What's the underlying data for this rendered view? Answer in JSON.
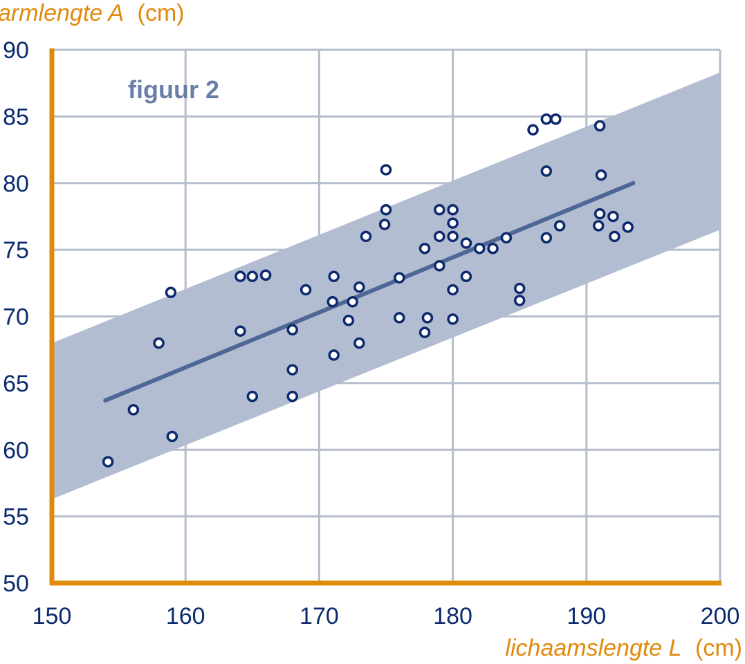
{
  "chart_data": {
    "type": "scatter",
    "title": "figuur 2",
    "ylabel": {
      "var": "armlengte A",
      "unit": "(cm)"
    },
    "xlabel": {
      "var": "lichaamslengte L",
      "unit": "(cm)"
    },
    "xlim": [
      150,
      200
    ],
    "ylim": [
      50,
      90
    ],
    "x_ticks": [
      150,
      160,
      170,
      180,
      190,
      200
    ],
    "y_ticks": [
      50,
      55,
      60,
      65,
      70,
      75,
      80,
      85,
      90
    ],
    "grid": true,
    "points": [
      [
        154.2,
        59.1
      ],
      [
        156.1,
        63.0
      ],
      [
        158.0,
        68.0
      ],
      [
        158.9,
        71.8
      ],
      [
        159.0,
        61.0
      ],
      [
        164.1,
        73.0
      ],
      [
        164.1,
        68.9
      ],
      [
        165.0,
        64.0
      ],
      [
        165.0,
        73.0
      ],
      [
        166.0,
        73.1
      ],
      [
        168.0,
        69.0
      ],
      [
        168.0,
        66.0
      ],
      [
        168.0,
        64.0
      ],
      [
        169.0,
        72.0
      ],
      [
        171.0,
        71.1
      ],
      [
        171.1,
        73.0
      ],
      [
        171.1,
        67.1
      ],
      [
        172.2,
        69.7
      ],
      [
        172.5,
        71.1
      ],
      [
        173.0,
        72.2
      ],
      [
        173.0,
        68.0
      ],
      [
        173.5,
        76.0
      ],
      [
        175.0,
        81.0
      ],
      [
        175.0,
        78.0
      ],
      [
        174.9,
        76.9
      ],
      [
        176.0,
        72.9
      ],
      [
        176.0,
        69.9
      ],
      [
        177.9,
        75.1
      ],
      [
        177.9,
        68.8
      ],
      [
        178.1,
        69.9
      ],
      [
        179.0,
        78.0
      ],
      [
        179.0,
        76.0
      ],
      [
        179.0,
        73.8
      ],
      [
        180.0,
        78.0
      ],
      [
        180.0,
        77.0
      ],
      [
        180.0,
        76.0
      ],
      [
        180.0,
        72.0
      ],
      [
        180.0,
        69.8
      ],
      [
        181.0,
        75.5
      ],
      [
        181.0,
        73.0
      ],
      [
        182.0,
        75.1
      ],
      [
        183.0,
        75.1
      ],
      [
        184.0,
        75.9
      ],
      [
        185.0,
        72.1
      ],
      [
        185.0,
        71.2
      ],
      [
        186.0,
        84.0
      ],
      [
        187.0,
        84.8
      ],
      [
        187.7,
        84.8
      ],
      [
        187.0,
        80.9
      ],
      [
        187.0,
        75.9
      ],
      [
        188.0,
        76.8
      ],
      [
        191.0,
        84.3
      ],
      [
        191.1,
        80.6
      ],
      [
        191.0,
        77.7
      ],
      [
        190.9,
        76.8
      ],
      [
        192.0,
        77.5
      ],
      [
        192.1,
        76.0
      ],
      [
        193.1,
        76.7
      ]
    ],
    "trend_line": {
      "x": [
        154.0,
        193.5
      ],
      "y": [
        63.7,
        80.0
      ]
    },
    "band": {
      "upper": {
        "x": [
          150,
          200
        ],
        "y": [
          68.0,
          88.3
        ]
      },
      "lower": {
        "x": [
          150,
          200
        ],
        "y": [
          56.3,
          76.5
        ]
      }
    },
    "colors": {
      "axis": "#e08a0b",
      "label": "#e08a0b",
      "tick_text": "#0a2a6e",
      "grid": "#b5bccc",
      "band": "#b3bdd1",
      "trend": "#4f6796",
      "marker_stroke": "#0d2a6e",
      "marker_fill": "#ffffff",
      "title": "#6a7fa8"
    }
  }
}
